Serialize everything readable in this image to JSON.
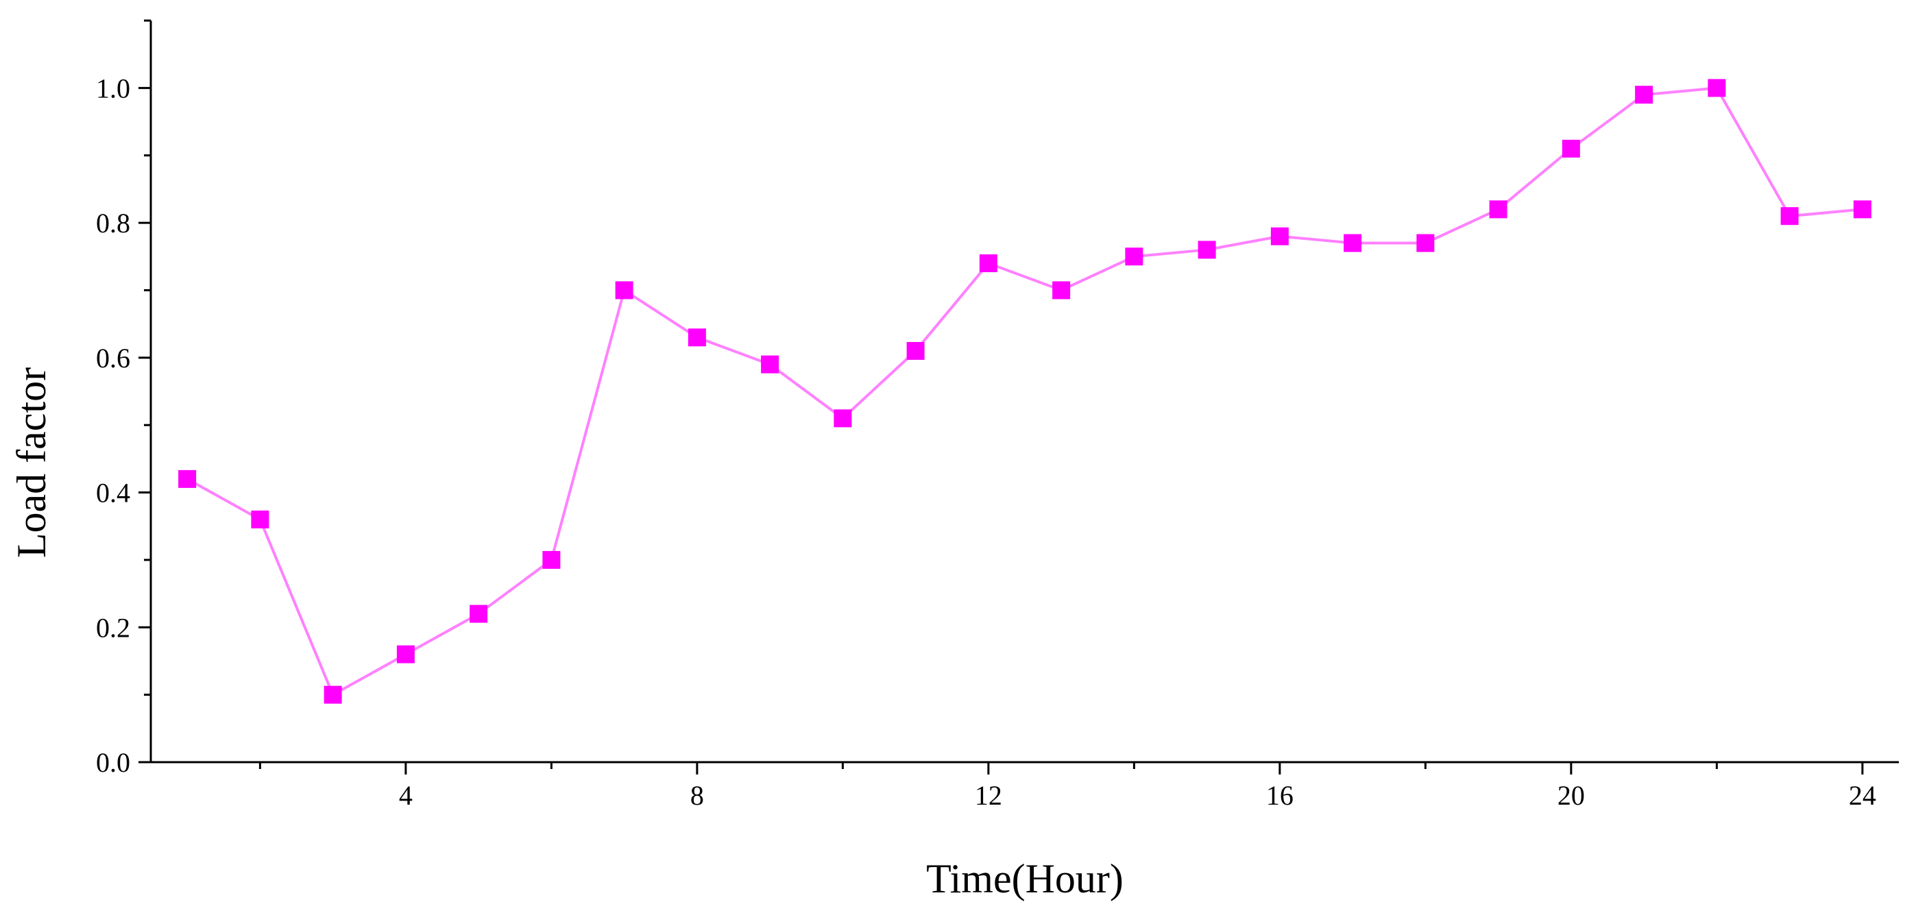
{
  "chart_data": {
    "type": "line",
    "xlabel": "Time(Hour)",
    "ylabel": "Load factor",
    "xlim": [
      0.5,
      24.5
    ],
    "ylim": [
      0,
      1.1
    ],
    "x_major_ticks": [
      4,
      8,
      12,
      16,
      20,
      24
    ],
    "x_tick_labels": [
      "4",
      "8",
      "12",
      "16",
      "20",
      "24"
    ],
    "x_minor_ticks": [
      2,
      6,
      10,
      14,
      18,
      22
    ],
    "y_major_ticks": [
      0.0,
      0.2,
      0.4,
      0.6,
      0.8,
      1.0
    ],
    "y_tick_labels": [
      "0.0",
      "0.2",
      "0.4",
      "0.6",
      "0.8",
      "1.0"
    ],
    "y_minor_ticks": [
      0.1,
      0.3,
      0.5,
      0.7,
      0.9,
      1.1
    ],
    "grid": false,
    "legend": "none",
    "marker": "square",
    "color": "#ff00ff",
    "line_color": "#ff80ff",
    "series": [
      {
        "x": [
          1,
          2,
          3,
          4,
          5,
          6,
          7,
          8,
          9,
          10,
          11,
          12,
          13,
          14,
          15,
          16,
          17,
          18,
          19,
          20,
          21,
          22,
          23,
          24
        ],
        "values": [
          0.42,
          0.36,
          0.1,
          0.16,
          0.22,
          0.3,
          0.7,
          0.63,
          0.59,
          0.51,
          0.61,
          0.74,
          0.7,
          0.75,
          0.76,
          0.78,
          0.77,
          0.77,
          0.82,
          0.91,
          0.99,
          1.0,
          0.81,
          0.82
        ]
      }
    ]
  }
}
